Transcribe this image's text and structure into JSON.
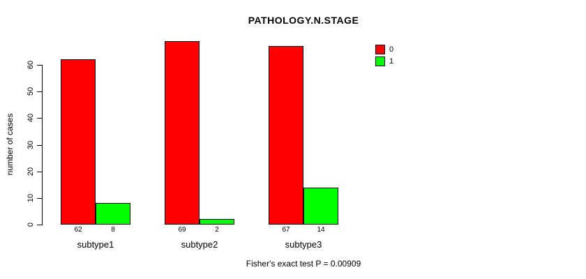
{
  "chart_data": {
    "type": "bar",
    "title": "PATHOLOGY.N.STAGE",
    "ylabel": "number of cases",
    "xlabel": "",
    "categories": [
      "subtype1",
      "subtype2",
      "subtype3"
    ],
    "series": [
      {
        "name": "0",
        "color": "#FF0000",
        "values": [
          62,
          69,
          67
        ]
      },
      {
        "name": "1",
        "color": "#00FF00",
        "values": [
          8,
          2,
          14
        ]
      }
    ],
    "bar_value_labels": [
      [
        62,
        69,
        67
      ],
      [
        8,
        2,
        14
      ]
    ],
    "yticks": [
      0,
      10,
      20,
      30,
      40,
      50,
      60
    ],
    "ylim": [
      0,
      69
    ],
    "grid": false,
    "legend_position": "top-right",
    "caption": "Fisher's exact test P = 0.00909"
  }
}
